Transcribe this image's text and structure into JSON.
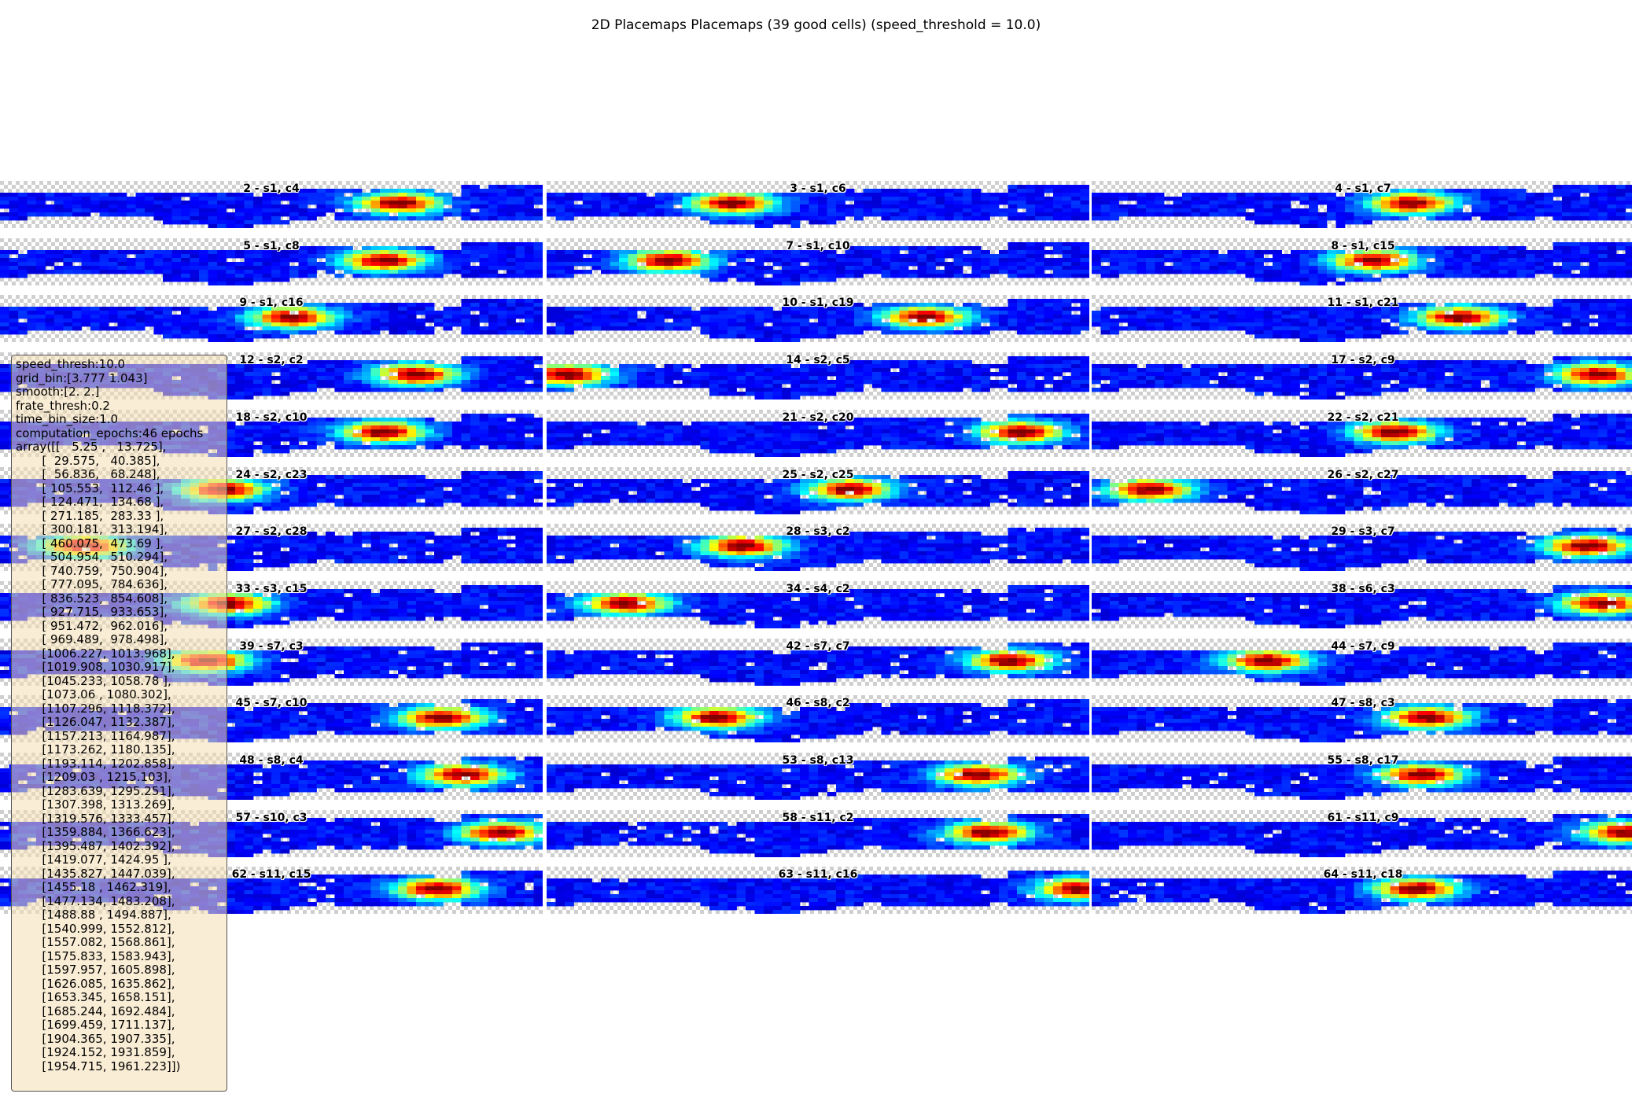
{
  "figure": {
    "title": "2D Placemaps Placemaps (39 good cells) (speed_threshold = 10.0)"
  },
  "colors": {
    "colormap": "jet",
    "nan_checker_light": "#ffffff",
    "nan_checker_dark": "#cfcfcf",
    "box_face": "#f5deb3"
  },
  "chart_data": {
    "type": "heatmap",
    "title": "2D Placemaps Placemaps (39 good cells) (speed_threshold = 10.0)",
    "layout_grid": {
      "rows": 13,
      "cols": 3
    },
    "colormap": "jet",
    "peak_note": "peak_x is the approximate peak position along the track as a fraction of track length",
    "cells": [
      {
        "label": "2 - s1, c4",
        "peak_x": 0.74
      },
      {
        "label": "3 - s1, c6",
        "peak_x": 0.34
      },
      {
        "label": "4 - s1, c7",
        "peak_x": 0.59
      },
      {
        "label": "5 - s1, c8",
        "peak_x": 0.71
      },
      {
        "label": "7 - s1, c10",
        "peak_x": 0.22
      },
      {
        "label": "8 - s1, c15",
        "peak_x": 0.52
      },
      {
        "label": "9 - s1, c16",
        "peak_x": 0.54
      },
      {
        "label": "10 - s1, c19",
        "peak_x": 0.7
      },
      {
        "label": "11 - s1, c21",
        "peak_x": 0.68
      },
      {
        "label": "12 - s2, c2",
        "peak_x": 0.77
      },
      {
        "label": "14 - s2, c5",
        "peak_x": 0.03
      },
      {
        "label": "17 - s2, c9",
        "peak_x": 0.94
      },
      {
        "label": "18 - s2, c10",
        "peak_x": 0.71
      },
      {
        "label": "21 - s2, c20",
        "peak_x": 0.88
      },
      {
        "label": "22 - s2, c21",
        "peak_x": 0.56
      },
      {
        "label": "24 - s2, c23",
        "peak_x": 0.41
      },
      {
        "label": "25 - s2, c25",
        "peak_x": 0.56
      },
      {
        "label": "26 - s2, c27",
        "peak_x": 0.1
      },
      {
        "label": "27 - s2, c28",
        "peak_x": 0.15
      },
      {
        "label": "28 - s3, c2",
        "peak_x": 0.36
      },
      {
        "label": "29 - s3, c7",
        "peak_x": 0.92
      },
      {
        "label": "33 - s3, c15",
        "peak_x": 0.42
      },
      {
        "label": "34 - s4, c2",
        "peak_x": 0.14
      },
      {
        "label": "38 - s6, c3",
        "peak_x": 0.95
      },
      {
        "label": "39 - s7, c3",
        "peak_x": 0.38
      },
      {
        "label": "42 - s7, c7",
        "peak_x": 0.86
      },
      {
        "label": "44 - s7, c9",
        "peak_x": 0.32
      },
      {
        "label": "45 - s7, c10",
        "peak_x": 0.82
      },
      {
        "label": "46 - s8, c2",
        "peak_x": 0.31
      },
      {
        "label": "47 - s8, c3",
        "peak_x": 0.62
      },
      {
        "label": "48 - s8, c4",
        "peak_x": 0.86
      },
      {
        "label": "53 - s8, c13",
        "peak_x": 0.8
      },
      {
        "label": "55 - s8, c17",
        "peak_x": 0.61
      },
      {
        "label": "57 - s10, c3",
        "peak_x": 0.93
      },
      {
        "label": "58 - s11, c2",
        "peak_x": 0.82
      },
      {
        "label": "61 - s11, c9",
        "peak_x": 0.99
      },
      {
        "label": "62 - s11, c15",
        "peak_x": 0.81
      },
      {
        "label": "63 - s11, c16",
        "peak_x": 0.99
      },
      {
        "label": "64 - s11, c18",
        "peak_x": 0.6
      }
    ]
  },
  "params_box": {
    "lines": [
      "speed_thresh:10.0",
      "grid_bin:[3.777 1.043]",
      "smooth:[2. 2.]",
      "frate_thresh:0.2",
      "time_bin_size:1.0",
      "computation_epochs:46 epochs",
      "array([[   5.25 ,   13.725],",
      "       [  29.575,   40.385],",
      "       [  56.836,   68.248],",
      "       [ 105.553,  112.46 ],",
      "       [ 124.471,  134.68 ],",
      "       [ 271.185,  283.33 ],",
      "       [ 300.181,  313.194],",
      "       [ 460.075,  473.69 ],",
      "       [ 504.954,  510.294],",
      "       [ 740.759,  750.904],",
      "       [ 777.095,  784.636],",
      "       [ 836.523,  854.608],",
      "       [ 927.715,  933.653],",
      "       [ 951.472,  962.016],",
      "       [ 969.489,  978.498],",
      "       [1006.227, 1013.968],",
      "       [1019.908, 1030.917],",
      "       [1045.233, 1058.78 ],",
      "       [1073.06 , 1080.302],",
      "       [1107.296, 1118.372],",
      "       [1126.047, 1132.387],",
      "       [1157.213, 1164.987],",
      "       [1173.262, 1180.135],",
      "       [1193.114, 1202.858],",
      "       [1209.03 , 1215.103],",
      "       [1283.639, 1295.251],",
      "       [1307.398, 1313.269],",
      "       [1319.576, 1333.457],",
      "       [1359.884, 1366.623],",
      "       [1395.487, 1402.392],",
      "       [1419.077, 1424.95 ],",
      "       [1435.827, 1447.039],",
      "       [1455.18 , 1462.319],",
      "       [1477.134, 1483.208],",
      "       [1488.88 , 1494.887],",
      "       [1540.999, 1552.812],",
      "       [1557.082, 1568.861],",
      "       [1575.833, 1583.943],",
      "       [1597.957, 1605.898],",
      "       [1626.085, 1635.862],",
      "       [1653.345, 1658.151],",
      "       [1685.244, 1692.484],",
      "       [1699.459, 1711.137],",
      "       [1904.365, 1907.335],",
      "       [1924.152, 1931.859],",
      "       [1954.715, 1961.223]])"
    ]
  }
}
